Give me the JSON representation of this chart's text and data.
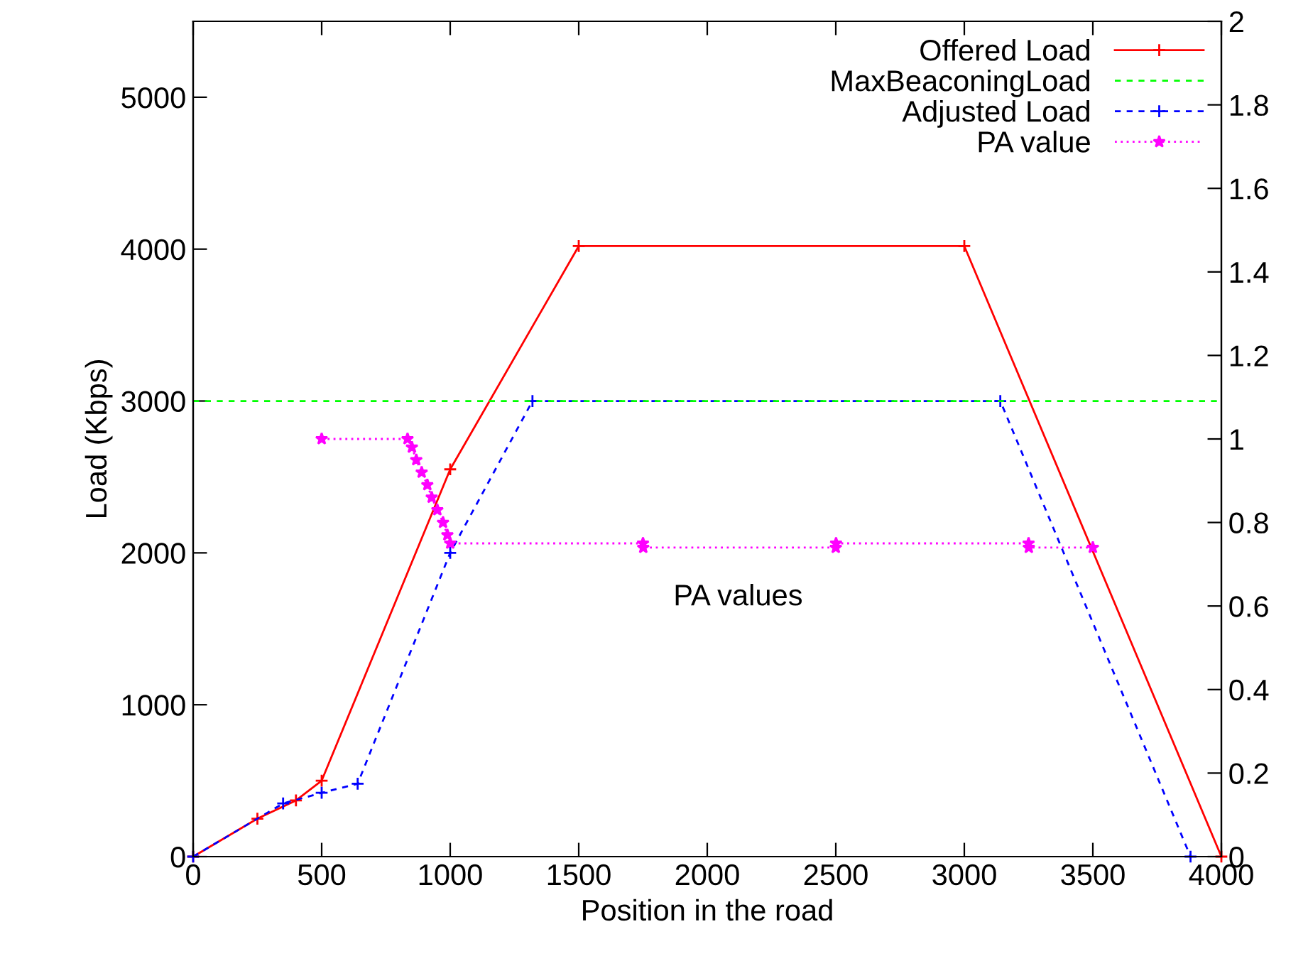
{
  "chart_data": {
    "type": "line",
    "xlabel": "Position in the road",
    "ylabel": "Load (Kbps)",
    "xlim": [
      0,
      4000
    ],
    "xticks": [
      0,
      500,
      1000,
      1500,
      2000,
      2500,
      3000,
      3500,
      4000
    ],
    "ylim": [
      0,
      5500
    ],
    "yticks": [
      0,
      1000,
      2000,
      3000,
      4000,
      5000
    ],
    "y2lim": [
      0,
      2
    ],
    "y2ticks": [
      0,
      0.2,
      0.4,
      0.6,
      0.8,
      1,
      1.2,
      1.4,
      1.6,
      1.8,
      2
    ],
    "legend": "top right",
    "grid": false,
    "annotations": [
      "PA values"
    ],
    "ref_lines": [
      {
        "axis": "y",
        "value": 3000,
        "label": "MaxBeaconingLoad",
        "color": "#00ff00",
        "line_style": "dashed"
      }
    ],
    "series": [
      {
        "name": "Offered Load",
        "color": "#ff0000",
        "marker": "cross",
        "line_style": "solid",
        "x": [
          0,
          250,
          400,
          500,
          1000,
          1500,
          3000,
          4000
        ],
        "values": [
          0,
          250,
          370,
          500,
          2550,
          4020,
          4020,
          0
        ]
      },
      {
        "name": "Adjusted Load",
        "color": "#0000ff",
        "marker": "cross",
        "line_style": "dashed",
        "x": [
          0,
          350,
          500,
          640,
          1000,
          1320,
          3140,
          3880
        ],
        "values": [
          0,
          350,
          420,
          480,
          2000,
          3000,
          3000,
          0
        ]
      },
      {
        "name": "PA value",
        "color": "#ff00ff",
        "marker": "star",
        "line_style": "dotted",
        "axis": "y2",
        "x": [
          500,
          834,
          851,
          868,
          889,
          911,
          928,
          950,
          972,
          989,
          1000,
          1750,
          1751,
          2500,
          2501,
          3250,
          3251,
          3500
        ],
        "values": [
          1,
          1,
          0.98,
          0.95,
          0.92,
          0.89,
          0.86,
          0.83,
          0.8,
          0.77,
          0.75,
          0.75,
          0.74,
          0.74,
          0.75,
          0.75,
          0.74,
          0.74
        ]
      }
    ]
  }
}
